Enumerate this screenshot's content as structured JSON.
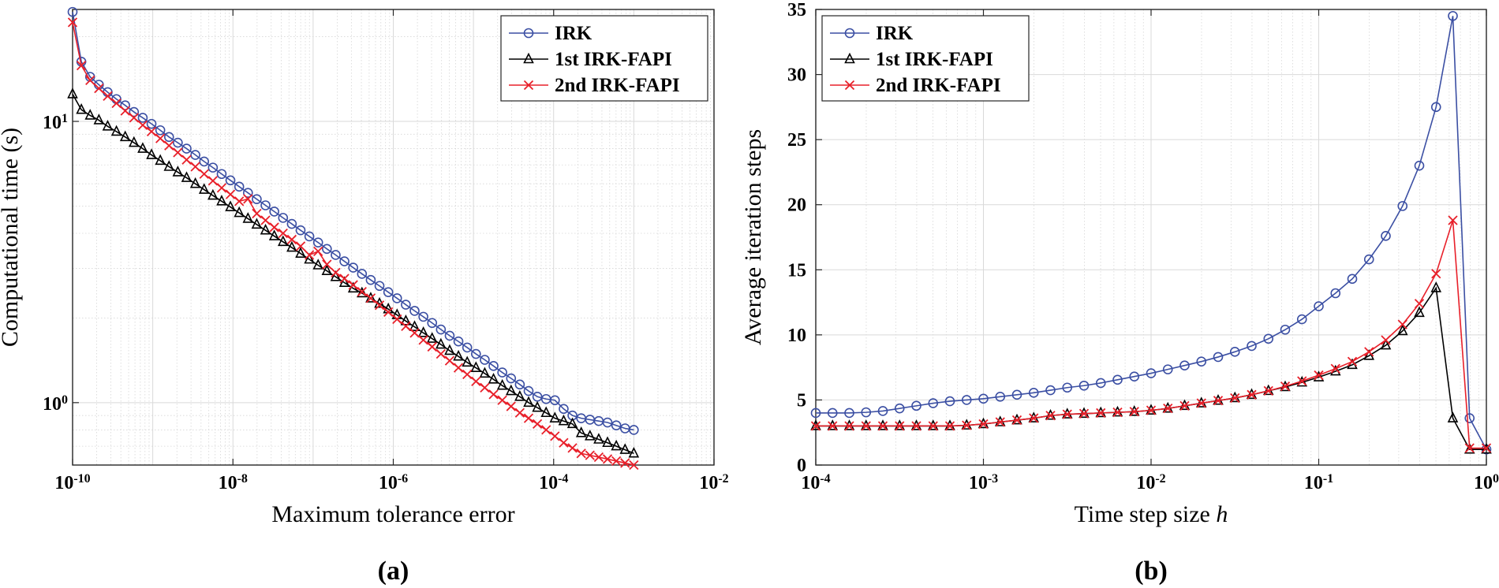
{
  "chart_data": [
    {
      "id": "a",
      "type": "line",
      "panel_label": "(a)",
      "xlabel": "Maximum tolerance error",
      "ylabel": "Computational time (s)",
      "xscale": "log",
      "yscale": "log",
      "xlim": [
        1e-10,
        0.01
      ],
      "ylim": [
        0.6,
        25
      ],
      "x_tick_labels": [
        {
          "value": 1e-10,
          "base": "10",
          "exp": "-10"
        },
        {
          "value": 1e-08,
          "base": "10",
          "exp": "-8"
        },
        {
          "value": 1e-06,
          "base": "10",
          "exp": "-6"
        },
        {
          "value": 0.0001,
          "base": "10",
          "exp": "-4"
        },
        {
          "value": 0.01,
          "base": "10",
          "exp": "-2"
        }
      ],
      "y_tick_labels": [
        {
          "value": 1,
          "base": "10",
          "exp": "0"
        },
        {
          "value": 10,
          "base": "10",
          "exp": "1"
        }
      ],
      "grid": true,
      "legend_position": "top-right",
      "series": [
        {
          "name": "IRK",
          "color": "#3b4fa3",
          "marker": "circle",
          "x_range": [
            1e-10,
            0.001
          ],
          "n": 65,
          "y": [
            24.5,
            16.3,
            14.4,
            13.5,
            12.7,
            12.0,
            11.4,
            10.8,
            10.3,
            9.8,
            9.3,
            8.8,
            8.4,
            8.0,
            7.6,
            7.2,
            6.85,
            6.5,
            6.17,
            5.86,
            5.57,
            5.29,
            5.03,
            4.78,
            4.54,
            4.32,
            4.1,
            3.9,
            3.71,
            3.52,
            3.35,
            3.18,
            3.02,
            2.87,
            2.73,
            2.6,
            2.47,
            2.35,
            2.23,
            2.12,
            2.02,
            1.92,
            1.82,
            1.73,
            1.65,
            1.57,
            1.49,
            1.42,
            1.35,
            1.28,
            1.22,
            1.16,
            1.1,
            1.05,
            1.03,
            1.02,
            0.95,
            0.9,
            0.88,
            0.87,
            0.86,
            0.85,
            0.83,
            0.81,
            0.8
          ]
        },
        {
          "name": "1st IRK-FAPI",
          "color": "#000000",
          "marker": "triangle",
          "x_range": [
            1e-10,
            0.001
          ],
          "n": 65,
          "y": [
            12.5,
            11.0,
            10.5,
            10.1,
            9.6,
            9.2,
            8.8,
            8.4,
            8.0,
            7.6,
            7.25,
            6.9,
            6.6,
            6.3,
            6.0,
            5.72,
            5.45,
            5.2,
            4.96,
            4.73,
            4.51,
            4.3,
            4.1,
            3.91,
            3.73,
            3.56,
            3.39,
            3.23,
            3.08,
            2.94,
            2.8,
            2.67,
            2.55,
            2.45,
            2.35,
            2.25,
            2.15,
            2.05,
            1.95,
            1.86,
            1.77,
            1.69,
            1.61,
            1.53,
            1.46,
            1.39,
            1.33,
            1.27,
            1.21,
            1.15,
            1.1,
            1.05,
            1.0,
            0.96,
            0.92,
            0.88,
            0.86,
            0.84,
            0.78,
            0.76,
            0.74,
            0.72,
            0.7,
            0.68,
            0.66
          ]
        },
        {
          "name": "2nd IRK-FAPI",
          "color": "#e8202a",
          "marker": "x",
          "x_range": [
            1e-10,
            0.001
          ],
          "n": 65,
          "y": [
            22.5,
            15.8,
            14.0,
            13.1,
            12.3,
            11.6,
            10.9,
            10.3,
            9.7,
            9.2,
            8.7,
            8.2,
            7.75,
            7.3,
            6.9,
            6.5,
            6.15,
            5.8,
            5.5,
            5.2,
            5.3,
            4.7,
            4.45,
            4.2,
            4.0,
            3.8,
            3.6,
            3.35,
            3.45,
            3.1,
            2.9,
            2.76,
            2.62,
            2.48,
            2.35,
            2.22,
            2.1,
            1.98,
            1.87,
            1.77,
            1.67,
            1.58,
            1.49,
            1.41,
            1.33,
            1.26,
            1.19,
            1.13,
            1.07,
            1.02,
            0.97,
            0.92,
            0.88,
            0.84,
            0.8,
            0.76,
            0.72,
            0.69,
            0.66,
            0.65,
            0.64,
            0.63,
            0.62,
            0.61,
            0.6
          ]
        }
      ]
    },
    {
      "id": "b",
      "type": "line",
      "panel_label": "(b)",
      "xlabel": "Time step size ",
      "xlabel_italic": "h",
      "ylabel": "Average iteration steps",
      "xscale": "log",
      "yscale": "linear",
      "xlim": [
        0.0001,
        1
      ],
      "ylim": [
        0,
        35
      ],
      "x_tick_labels": [
        {
          "value": 0.0001,
          "base": "10",
          "exp": "-4"
        },
        {
          "value": 0.001,
          "base": "10",
          "exp": "-3"
        },
        {
          "value": 0.01,
          "base": "10",
          "exp": "-2"
        },
        {
          "value": 0.1,
          "base": "10",
          "exp": "-1"
        },
        {
          "value": 1,
          "base": "10",
          "exp": "0"
        }
      ],
      "y_ticks": [
        0,
        5,
        10,
        15,
        20,
        25,
        30,
        35
      ],
      "grid": true,
      "legend_position": "top-left",
      "series": [
        {
          "name": "IRK",
          "color": "#3b4fa3",
          "marker": "circle",
          "x_range": [
            0.0001,
            1
          ],
          "n": 41,
          "y": [
            4.0,
            4.0,
            4.0,
            4.05,
            4.15,
            4.35,
            4.55,
            4.75,
            4.9,
            5.0,
            5.1,
            5.25,
            5.4,
            5.55,
            5.75,
            5.95,
            6.1,
            6.3,
            6.55,
            6.8,
            7.05,
            7.35,
            7.65,
            7.95,
            8.3,
            8.7,
            9.15,
            9.7,
            10.4,
            11.2,
            12.2,
            13.2,
            14.3,
            15.8,
            17.6,
            19.9,
            23.0,
            27.5,
            34.5,
            3.6,
            1.2
          ]
        },
        {
          "name": "1st IRK-FAPI",
          "color": "#000000",
          "marker": "triangle",
          "x_range": [
            0.0001,
            1
          ],
          "n": 41,
          "y": [
            3.0,
            3.0,
            3.0,
            3.0,
            3.0,
            3.0,
            3.0,
            3.0,
            3.0,
            3.05,
            3.15,
            3.3,
            3.45,
            3.6,
            3.8,
            3.9,
            3.95,
            4.0,
            4.05,
            4.1,
            4.2,
            4.35,
            4.55,
            4.75,
            4.95,
            5.15,
            5.4,
            5.7,
            6.0,
            6.35,
            6.75,
            7.2,
            7.7,
            8.4,
            9.2,
            10.3,
            11.7,
            13.6,
            3.6,
            1.2,
            1.2
          ]
        },
        {
          "name": "2nd IRK-FAPI",
          "color": "#e8202a",
          "marker": "x",
          "x_range": [
            0.0001,
            1
          ],
          "n": 41,
          "y": [
            3.0,
            3.0,
            3.0,
            3.0,
            3.0,
            3.0,
            3.0,
            3.0,
            3.0,
            3.05,
            3.15,
            3.3,
            3.45,
            3.6,
            3.8,
            3.9,
            3.95,
            4.0,
            4.05,
            4.1,
            4.2,
            4.35,
            4.55,
            4.75,
            4.95,
            5.15,
            5.4,
            5.7,
            6.05,
            6.45,
            6.9,
            7.4,
            7.95,
            8.7,
            9.6,
            10.8,
            12.4,
            14.7,
            18.8,
            1.3,
            1.3
          ]
        }
      ]
    }
  ]
}
